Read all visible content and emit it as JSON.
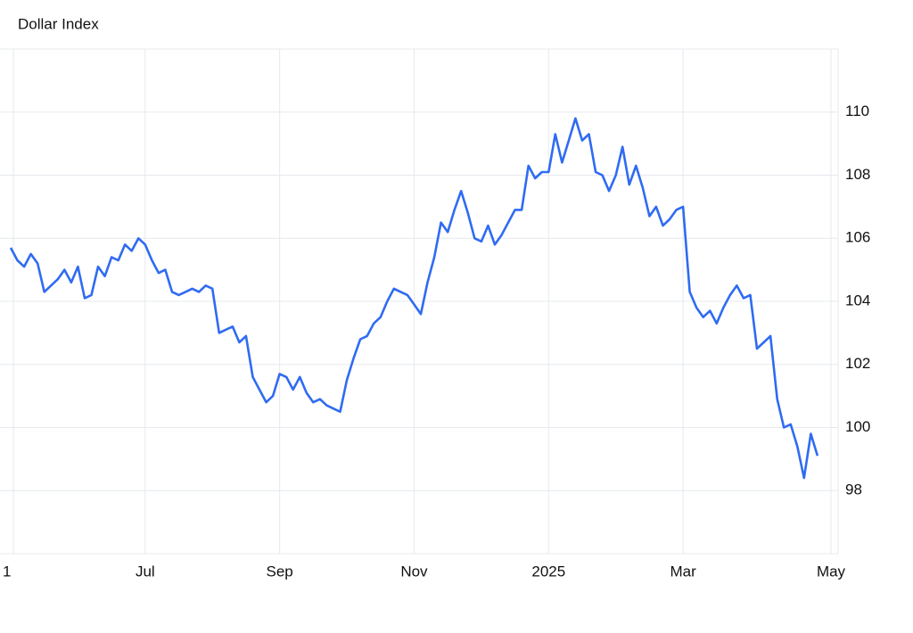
{
  "chart_data": {
    "type": "line",
    "title": "Dollar Index",
    "categories": [
      "1",
      null,
      null,
      null,
      null,
      null,
      null,
      null,
      null,
      null,
      null,
      null,
      null,
      null,
      null,
      null,
      null,
      null,
      null,
      null,
      "Jul",
      null,
      null,
      null,
      null,
      null,
      null,
      null,
      null,
      null,
      null,
      null,
      null,
      null,
      null,
      null,
      null,
      null,
      null,
      null,
      "Sep",
      null,
      null,
      null,
      null,
      null,
      null,
      null,
      null,
      null,
      null,
      null,
      null,
      null,
      null,
      null,
      null,
      null,
      null,
      null,
      "Nov",
      null,
      null,
      null,
      null,
      null,
      null,
      null,
      null,
      null,
      null,
      null,
      null,
      null,
      null,
      null,
      null,
      null,
      null,
      null,
      "2025",
      null,
      null,
      null,
      null,
      null,
      null,
      null,
      null,
      null,
      null,
      null,
      null,
      null,
      null,
      null,
      null,
      null,
      null,
      null,
      "Mar",
      null,
      null,
      null,
      null,
      null,
      null,
      null,
      null,
      null,
      null,
      null,
      null,
      null,
      null,
      null,
      null,
      null,
      null,
      null,
      null,
      null,
      "May"
    ],
    "series": [
      {
        "name": "Dollar Index",
        "color": "#2f6bf2",
        "values": [
          105.7,
          105.3,
          105.1,
          105.5,
          105.2,
          104.3,
          104.5,
          104.7,
          105.0,
          104.6,
          105.1,
          104.1,
          104.2,
          105.1,
          104.8,
          105.4,
          105.3,
          105.8,
          105.6,
          106.0,
          105.8,
          105.3,
          104.9,
          105.0,
          104.3,
          104.2,
          104.3,
          104.4,
          104.3,
          104.5,
          104.4,
          103.0,
          103.1,
          103.2,
          102.7,
          102.9,
          101.6,
          101.2,
          100.8,
          101.0,
          101.7,
          101.6,
          101.2,
          101.6,
          101.1,
          100.8,
          100.9,
          100.7,
          100.6,
          100.5,
          101.5,
          102.2,
          102.8,
          102.9,
          103.3,
          103.5,
          104.0,
          104.4,
          104.3,
          104.2,
          103.9,
          103.6,
          104.6,
          105.4,
          106.5,
          106.2,
          106.9,
          107.5,
          106.8,
          106.0,
          105.9,
          106.4,
          105.8,
          106.1,
          106.5,
          106.9,
          106.9,
          108.3,
          107.9,
          108.1,
          108.1,
          109.3,
          108.4,
          109.1,
          109.8,
          109.1,
          109.3,
          108.1,
          108.0,
          107.5,
          108.0,
          108.9,
          107.7,
          108.3,
          107.6,
          106.7,
          107.0,
          106.4,
          106.6,
          106.9,
          107.0,
          104.3,
          103.8,
          103.5,
          103.7,
          103.3,
          103.8,
          104.2,
          104.5,
          104.1,
          104.2,
          102.5,
          102.7,
          102.9,
          100.9,
          100.0,
          100.1,
          99.4,
          98.4,
          99.8,
          99.1,
          null,
          null
        ]
      }
    ],
    "ylim": [
      96,
      112
    ],
    "yticks": [
      98,
      100,
      102,
      104,
      106,
      108,
      110
    ],
    "grid": true
  }
}
